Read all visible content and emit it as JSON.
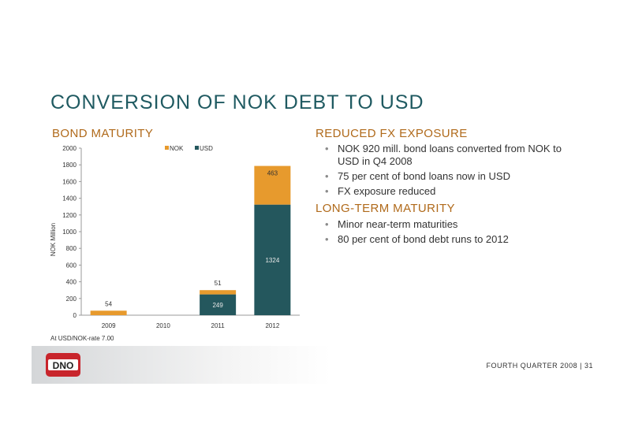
{
  "slide": {
    "title": "CONVERSION OF NOK DEBT TO USD",
    "footer": "FOURTH QUARTER 2008 |   31"
  },
  "bond_section": {
    "heading": "BOND MATURITY",
    "footnote": "At USD/NOK-rate 7.00"
  },
  "fx_section": {
    "heading": "REDUCED FX EXPOSURE",
    "bullets": [
      "NOK 920 mill. bond loans converted from NOK to USD in Q4 2008",
      "75 per cent of bond loans now in USD",
      "FX exposure reduced"
    ]
  },
  "lt_section": {
    "heading": "LONG-TERM MATURITY",
    "bullets": [
      "Minor near-term maturities",
      "80 per cent of bond debt runs to 2012"
    ]
  },
  "logo": {
    "text": "DNO",
    "colors": {
      "red": "#c8252c",
      "white": "#ffffff"
    }
  },
  "colors": {
    "title": "#1f5a61",
    "heading": "#b06a1b",
    "usd": "#24575d",
    "nok": "#e79a2d"
  },
  "chart_data": {
    "type": "bar",
    "stacked": true,
    "categories": [
      "2009",
      "2010",
      "2011",
      "2012"
    ],
    "series": [
      {
        "name": "USD",
        "values": [
          0,
          0,
          249,
          1324
        ],
        "color": "#24575d"
      },
      {
        "name": "NOK",
        "values": [
          54,
          0,
          51,
          463
        ],
        "color": "#e79a2d"
      }
    ],
    "data_labels": {
      "USD": [
        "",
        "",
        "249",
        "1324"
      ],
      "NOK": [
        "54",
        "",
        "51",
        "463"
      ]
    },
    "ylabel": "NOK Million",
    "ylim": [
      0,
      2000
    ],
    "yticks": [
      0,
      200,
      400,
      600,
      800,
      1000,
      1200,
      1400,
      1600,
      1800,
      2000
    ],
    "legend": {
      "placement": "top",
      "order": [
        "NOK",
        "USD"
      ]
    },
    "grid": false
  }
}
